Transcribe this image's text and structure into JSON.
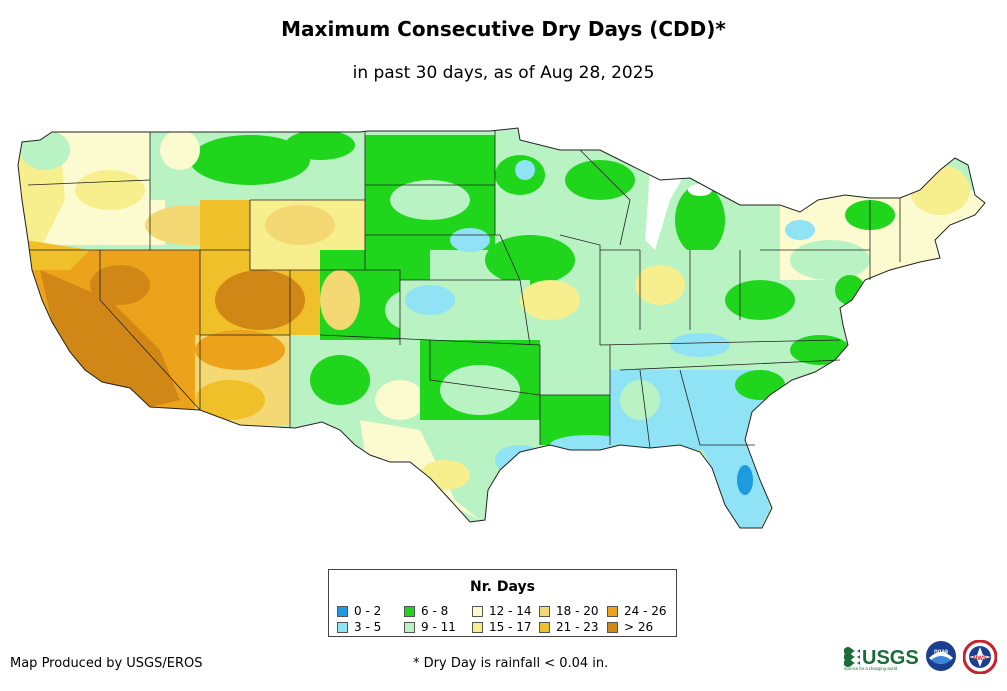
{
  "title": "Maximum Consecutive Dry Days (CDD)*",
  "subtitle": "in past 30 days, as of Aug 28, 2025",
  "legend": {
    "title": "Nr. Days",
    "items": [
      {
        "label": "0 - 2",
        "color": "#1e9be0"
      },
      {
        "label": "3 - 5",
        "color": "#8fe3f5"
      },
      {
        "label": "6 - 8",
        "color": "#1fd61c"
      },
      {
        "label": "9 - 11",
        "color": "#b9f2c3"
      },
      {
        "label": "12 - 14",
        "color": "#fbfbcf"
      },
      {
        "label": "15 - 17",
        "color": "#f7ee8e"
      },
      {
        "label": "18 - 20",
        "color": "#f4d873"
      },
      {
        "label": "21 - 23",
        "color": "#f0c02a"
      },
      {
        "label": "24 - 26",
        "color": "#eca21a"
      },
      {
        "label": "> 26",
        "color": "#d08716"
      }
    ]
  },
  "credit": "Map Produced by USGS/EROS",
  "footnote": "* Dry Day is rainfall < 0.04 in.",
  "logos": {
    "usgs_text": "USGS",
    "usgs_tagline": "science for a changing world",
    "noaa_text": "noaa",
    "nws_text": "NWS"
  }
}
